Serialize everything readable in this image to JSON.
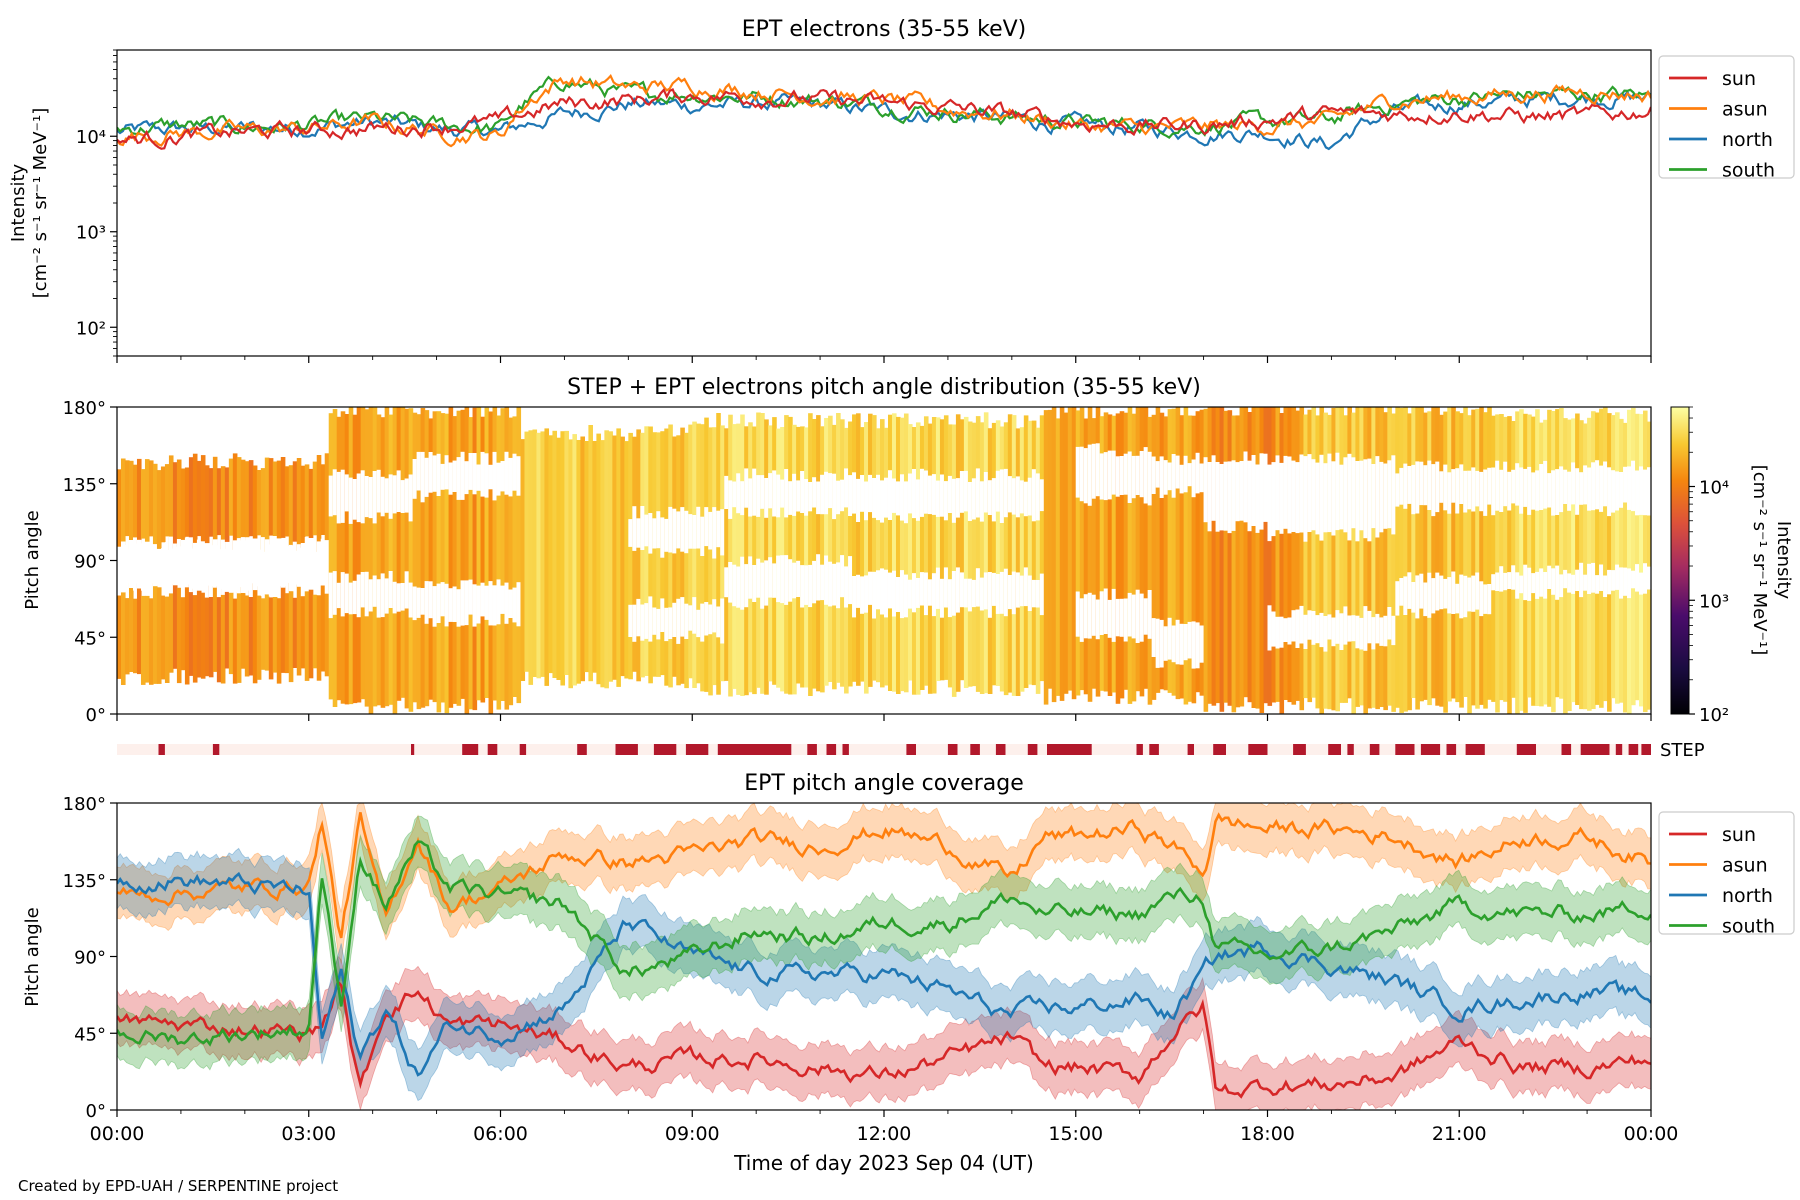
{
  "figure": {
    "credit": "Created by EPD-UAH / SERPENTINE project"
  },
  "colors": {
    "sun": "#d62728",
    "asun": "#ff7f0e",
    "north": "#1f77b4",
    "south": "#2ca02c",
    "step_bar": "#b2182b",
    "step_bg": "#fdf0ec"
  },
  "chart_data": [
    {
      "type": "line",
      "title": "EPT electrons (35-55 keV)",
      "ylabel": "Intensity",
      "yunits": "[cm⁻² s⁻¹ sr⁻¹ MeV⁻¹]",
      "yscale": "log",
      "ylim": [
        50,
        80000
      ],
      "yticks": [
        {
          "value": 100,
          "label": "10²"
        },
        {
          "value": 1000,
          "label": "10³"
        },
        {
          "value": 10000,
          "label": "10⁴"
        }
      ],
      "xlim_hours": [
        0,
        24
      ],
      "legend": "outside-right",
      "legend_entries": [
        "sun",
        "asun",
        "north",
        "south"
      ],
      "series": [
        {
          "name": "sun",
          "x_hours": [
            0,
            1,
            2,
            3,
            4,
            5,
            6,
            7,
            8,
            9,
            10,
            11,
            12,
            13,
            14,
            15,
            16,
            17,
            18,
            19,
            20,
            21,
            22,
            23,
            24
          ],
          "values": [
            9000,
            10000,
            11000,
            11500,
            12000,
            13000,
            14000,
            22000,
            24000,
            27000,
            26000,
            24000,
            22000,
            20000,
            17000,
            14000,
            13000,
            13000,
            15000,
            17000,
            17000,
            18000,
            16000,
            16000,
            19000
          ]
        },
        {
          "name": "asun",
          "x_hours": [
            0,
            1,
            2,
            3,
            4,
            5,
            6,
            7,
            8,
            9,
            10,
            11,
            12,
            13,
            14,
            15,
            16,
            17,
            18,
            19,
            20,
            21,
            22,
            23,
            24
          ],
          "values": [
            10000,
            11000,
            11500,
            12000,
            14000,
            11000,
            10000,
            40000,
            32000,
            34000,
            30000,
            26000,
            24000,
            19000,
            17000,
            13000,
            12000,
            12500,
            13000,
            14000,
            24000,
            26000,
            28000,
            30000,
            27000
          ]
        },
        {
          "name": "north",
          "x_hours": [
            0,
            1,
            2,
            3,
            4,
            5,
            6,
            7,
            8,
            9,
            10,
            11,
            12,
            13,
            14,
            15,
            16,
            17,
            18,
            19,
            20,
            21,
            22,
            23,
            24
          ],
          "values": [
            11000,
            12000,
            12000,
            12500,
            14000,
            12000,
            11000,
            17000,
            22000,
            21000,
            22000,
            21000,
            18000,
            17000,
            15000,
            13000,
            12000,
            11000,
            11000,
            8000,
            18000,
            22000,
            24000,
            26000,
            25000
          ]
        },
        {
          "name": "south",
          "x_hours": [
            0,
            1,
            2,
            3,
            4,
            5,
            6,
            7,
            8,
            9,
            10,
            11,
            12,
            13,
            14,
            15,
            16,
            17,
            18,
            19,
            20,
            21,
            22,
            23,
            24
          ],
          "values": [
            12000,
            13000,
            12500,
            13000,
            15000,
            13000,
            12000,
            38000,
            27000,
            28000,
            26000,
            24000,
            21000,
            18000,
            16000,
            14000,
            13000,
            13000,
            14000,
            15000,
            22000,
            25000,
            27000,
            28000,
            26000
          ]
        }
      ]
    },
    {
      "type": "heatmap",
      "title": "STEP + EPT electrons pitch angle distribution (35-55 keV)",
      "ylabel": "Pitch angle",
      "ylim": [
        0,
        180
      ],
      "yticks": [
        0,
        45,
        90,
        135,
        180
      ],
      "colorbar": {
        "label": "Intensity",
        "units": "[cm⁻² s⁻¹ sr⁻¹ MeV⁻¹]",
        "scale": "log",
        "range": [
          100,
          50000
        ],
        "ticks": [
          {
            "value": 100,
            "label": "10²"
          },
          {
            "value": 1000,
            "label": "10³"
          },
          {
            "value": 10000,
            "label": "10⁴"
          }
        ]
      },
      "segments": [
        {
          "start": 0,
          "end": 3.3,
          "intensity": 12000,
          "bands": [
            [
              100,
              148
            ],
            [
              22,
              72
            ]
          ]
        },
        {
          "start": 3.3,
          "end": 6.3,
          "intensity": 15000,
          "bands": [
            [
              5,
              178
            ]
          ]
        },
        {
          "start": 6.3,
          "end": 9.0,
          "intensity": 25000,
          "bands": [
            [
              20,
              165
            ]
          ]
        },
        {
          "start": 9.0,
          "end": 14.5,
          "intensity": 28000,
          "bands": [
            [
              15,
              172
            ]
          ]
        },
        {
          "start": 14.5,
          "end": 17.0,
          "intensity": 16000,
          "bands": [
            [
              10,
              178
            ]
          ]
        },
        {
          "start": 17.0,
          "end": 18.5,
          "intensity": 12000,
          "bands": [
            [
              5,
              180
            ]
          ]
        },
        {
          "start": 18.5,
          "end": 21.5,
          "intensity": 22000,
          "bands": [
            [
              5,
              180
            ]
          ]
        },
        {
          "start": 21.5,
          "end": 24,
          "intensity": 30000,
          "bands": [
            [
              5,
              175
            ]
          ]
        }
      ],
      "gaps": [
        {
          "start": 0,
          "end": 3.3,
          "ranges": [
            [
              72,
              100
            ]
          ]
        },
        {
          "start": 3.3,
          "end": 4.6,
          "ranges": [
            [
              115,
              140
            ],
            [
              60,
              80
            ]
          ]
        },
        {
          "start": 4.6,
          "end": 6.3,
          "ranges": [
            [
              128,
              150
            ],
            [
              55,
              75
            ]
          ]
        },
        {
          "start": 8.0,
          "end": 9.5,
          "ranges": [
            [
              95,
              118
            ],
            [
              45,
              65
            ]
          ]
        },
        {
          "start": 9.5,
          "end": 11.5,
          "ranges": [
            [
              118,
              140
            ],
            [
              65,
              90
            ]
          ]
        },
        {
          "start": 11.5,
          "end": 14.5,
          "ranges": [
            [
              115,
              140
            ],
            [
              60,
              82
            ]
          ]
        },
        {
          "start": 15.0,
          "end": 16.2,
          "ranges": [
            [
              125,
              155
            ],
            [
              45,
              70
            ]
          ]
        },
        {
          "start": 16.2,
          "end": 17.0,
          "ranges": [
            [
              130,
              150
            ],
            [
              30,
              55
            ]
          ]
        },
        {
          "start": 17.0,
          "end": 18.0,
          "ranges": [
            [
              110,
              150
            ]
          ]
        },
        {
          "start": 18.0,
          "end": 20.0,
          "ranges": [
            [
              105,
              150
            ],
            [
              40,
              60
            ]
          ]
        },
        {
          "start": 20.0,
          "end": 21.5,
          "ranges": [
            [
              120,
              145
            ],
            [
              60,
              80
            ]
          ]
        },
        {
          "start": 21.5,
          "end": 24,
          "ranges": [
            [
              120,
              145
            ],
            [
              70,
              85
            ]
          ]
        }
      ]
    },
    {
      "type": "bar",
      "label": "STEP",
      "description": "STEP data availability",
      "intervals_hours": [
        [
          0.65,
          0.75
        ],
        [
          1.5,
          1.6
        ],
        [
          4.6,
          4.65
        ],
        [
          5.4,
          5.65
        ],
        [
          5.8,
          5.95
        ],
        [
          6.3,
          6.4
        ],
        [
          7.2,
          7.35
        ],
        [
          7.8,
          8.15
        ],
        [
          8.4,
          8.75
        ],
        [
          8.9,
          9.25
        ],
        [
          9.4,
          10.55
        ],
        [
          10.8,
          10.95
        ],
        [
          11.1,
          11.25
        ],
        [
          11.35,
          11.45
        ],
        [
          12.35,
          12.5
        ],
        [
          13.0,
          13.15
        ],
        [
          13.35,
          13.5
        ],
        [
          13.75,
          13.9
        ],
        [
          14.25,
          14.4
        ],
        [
          14.55,
          15.25
        ],
        [
          15.95,
          16.05
        ],
        [
          16.15,
          16.3
        ],
        [
          16.75,
          16.85
        ],
        [
          17.15,
          17.35
        ],
        [
          17.7,
          18.0
        ],
        [
          18.4,
          18.6
        ],
        [
          18.95,
          19.15
        ],
        [
          19.25,
          19.35
        ],
        [
          19.6,
          19.75
        ],
        [
          20.0,
          20.3
        ],
        [
          20.4,
          20.7
        ],
        [
          20.8,
          20.95
        ],
        [
          21.1,
          21.4
        ],
        [
          21.9,
          22.2
        ],
        [
          22.6,
          22.75
        ],
        [
          22.9,
          23.35
        ],
        [
          23.45,
          23.55
        ],
        [
          23.65,
          23.8
        ],
        [
          23.85,
          24
        ]
      ]
    },
    {
      "type": "area",
      "title": "EPT pitch angle coverage",
      "ylabel": "Pitch angle",
      "xlabel": "Time of day 2023 Sep 04 (UT)",
      "ylim": [
        0,
        180
      ],
      "yticks": [
        0,
        45,
        90,
        135,
        180
      ],
      "xlim_hours": [
        0,
        24
      ],
      "xticks": [
        {
          "value": 0,
          "label": "00:00"
        },
        {
          "value": 3,
          "label": "03:00"
        },
        {
          "value": 6,
          "label": "06:00"
        },
        {
          "value": 9,
          "label": "09:00"
        },
        {
          "value": 12,
          "label": "12:00"
        },
        {
          "value": 15,
          "label": "15:00"
        },
        {
          "value": 18,
          "label": "18:00"
        },
        {
          "value": 21,
          "label": "21:00"
        },
        {
          "value": 24,
          "label": "00:00"
        }
      ],
      "band_halfwidth_deg": 15,
      "legend": "outside-right",
      "legend_entries": [
        "sun",
        "asun",
        "north",
        "south"
      ],
      "series": [
        {
          "name": "sun",
          "x_hours": [
            0,
            1,
            2,
            3,
            3.2,
            3.5,
            3.8,
            4.2,
            4.7,
            5.2,
            6,
            7,
            8,
            9,
            10,
            11,
            12,
            13,
            14,
            14.5,
            15,
            16,
            16.5,
            17,
            17.2,
            18,
            19,
            20,
            21,
            22,
            23,
            24
          ],
          "values": [
            52,
            50,
            48,
            45,
            50,
            75,
            10,
            60,
            70,
            50,
            50,
            40,
            25,
            30,
            30,
            25,
            20,
            30,
            42,
            25,
            25,
            20,
            45,
            60,
            10,
            15,
            15,
            20,
            40,
            25,
            25,
            30
          ]
        },
        {
          "name": "asun",
          "x_hours": [
            0,
            1,
            2,
            3,
            3.2,
            3.5,
            3.8,
            4.2,
            4.7,
            5.2,
            6,
            7,
            8,
            9,
            10,
            11,
            12,
            13,
            14,
            14.5,
            15,
            16,
            16.5,
            17,
            17.2,
            18,
            19,
            20,
            21,
            22,
            23,
            24
          ],
          "values": [
            125,
            128,
            130,
            132,
            170,
            100,
            170,
            110,
            160,
            120,
            130,
            150,
            145,
            150,
            158,
            155,
            165,
            155,
            135,
            160,
            160,
            165,
            155,
            140,
            170,
            165,
            165,
            160,
            145,
            160,
            160,
            145
          ]
        },
        {
          "name": "north",
          "x_hours": [
            0,
            1,
            2,
            3,
            3.2,
            3.5,
            3.8,
            4.2,
            4.7,
            5.2,
            6,
            7,
            8,
            9,
            10,
            11,
            12,
            13,
            14,
            14.5,
            15,
            16,
            16.5,
            17,
            17.2,
            18,
            19,
            20,
            21,
            22,
            23,
            24
          ],
          "values": [
            135,
            135,
            132,
            128,
            40,
            80,
            30,
            60,
            20,
            50,
            45,
            60,
            110,
            90,
            80,
            80,
            80,
            70,
            55,
            60,
            60,
            65,
            55,
            80,
            90,
            95,
            85,
            75,
            60,
            65,
            70,
            65
          ]
        },
        {
          "name": "south",
          "x_hours": [
            0,
            1,
            2,
            3,
            3.2,
            3.5,
            3.8,
            4.2,
            4.7,
            5.2,
            6,
            7,
            8,
            9,
            10,
            11,
            12,
            13,
            14,
            14.5,
            15,
            16,
            16.5,
            17,
            17.2,
            18,
            19,
            20,
            21,
            22,
            23,
            24
          ],
          "values": [
            45,
            42,
            45,
            48,
            140,
            60,
            150,
            120,
            155,
            130,
            125,
            120,
            80,
            90,
            105,
            100,
            110,
            110,
            125,
            115,
            115,
            115,
            125,
            125,
            95,
            90,
            95,
            105,
            120,
            115,
            115,
            120
          ]
        }
      ]
    }
  ]
}
